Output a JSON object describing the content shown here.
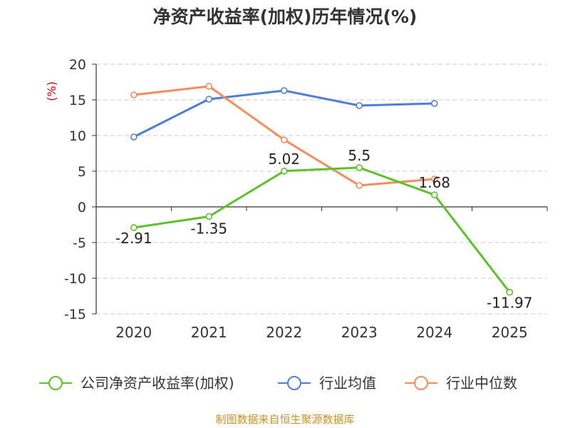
{
  "chart_data": {
    "type": "line",
    "title": "净资产收益率(加权)历年情况(%)",
    "ylabel": "(%)",
    "xlabel": "",
    "categories": [
      "2020",
      "2021",
      "2022",
      "2023",
      "2024",
      "2025"
    ],
    "ylim": [
      -15,
      20
    ],
    "yticks": [
      20,
      15,
      10,
      5,
      0,
      -5,
      -10,
      -15
    ],
    "grid": true,
    "legend_position": "bottom",
    "series": [
      {
        "name": "公司净资产收益率(加权)",
        "color": "#5cc22a",
        "values": [
          -2.91,
          -1.35,
          5.02,
          5.5,
          1.68,
          -11.97
        ],
        "labels": [
          "-2.91",
          "-1.35",
          "5.02",
          "5.5",
          "1.68",
          "-11.97"
        ]
      },
      {
        "name": "行业均值",
        "color": "#4e7fd4",
        "values": [
          9.8,
          15.1,
          16.3,
          14.2,
          14.5,
          null
        ]
      },
      {
        "name": "行业中位数",
        "color": "#f58c5a",
        "values": [
          15.7,
          16.9,
          9.4,
          3.0,
          3.9,
          null
        ]
      }
    ]
  },
  "footer": {
    "source": "制图数据来自恒生聚源数据库"
  }
}
